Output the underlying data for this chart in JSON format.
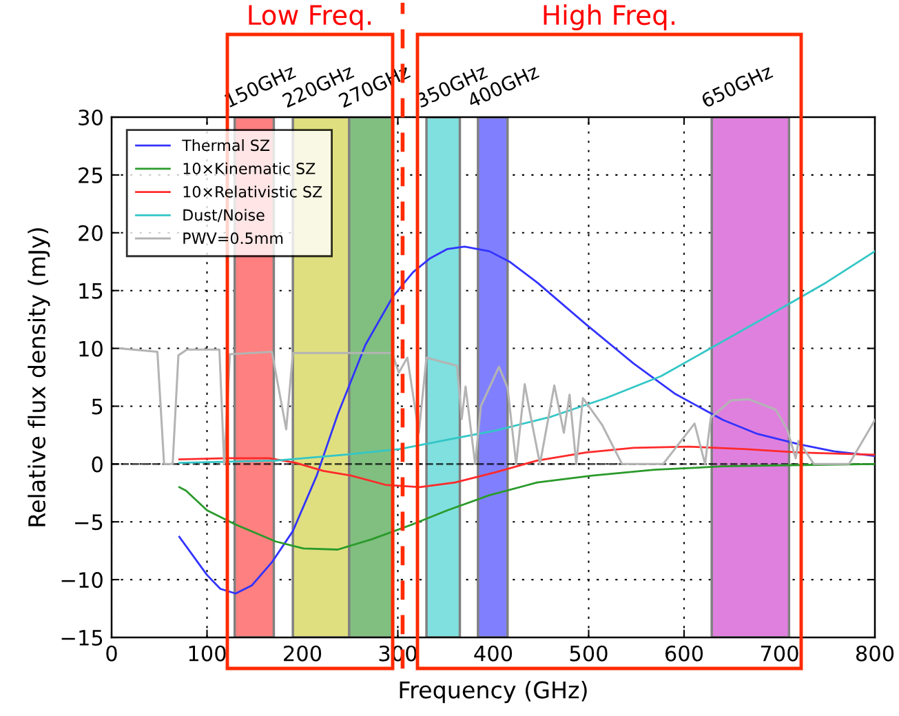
{
  "chart_data": {
    "type": "line",
    "xlabel": "Frequency (GHz)",
    "ylabel": "Relative flux density (mJy)",
    "xlim": [
      0,
      800
    ],
    "xticks": [
      0,
      100,
      200,
      300,
      400,
      500,
      600,
      700,
      800
    ],
    "ylim": [
      -15,
      30
    ],
    "yticks": [
      -15,
      -10,
      -5,
      0,
      5,
      10,
      15,
      20,
      25,
      30
    ],
    "grid": true,
    "legend": "top left",
    "annotations": [
      "Low Freq.",
      "High Freq."
    ],
    "series": [
      {
        "name": "Thermal SZ",
        "color": "#3333ff",
        "x": [
          71,
          100,
          114,
          130,
          147,
          168,
          190,
          215,
          237,
          266,
          295,
          316,
          334,
          352,
          370,
          396,
          417,
          446,
          497,
          547,
          590,
          641,
          677,
          721,
          757,
          800
        ],
        "values": [
          -6.3,
          -9.6,
          -10.8,
          -11.2,
          -10.5,
          -8.5,
          -5.8,
          -1.0,
          4.3,
          10.3,
          14.5,
          16.6,
          17.8,
          18.6,
          18.8,
          18.4,
          17.5,
          15.7,
          12.1,
          8.7,
          6.1,
          3.8,
          2.6,
          1.7,
          1.1,
          0.7
        ]
      },
      {
        "name": "10×Kinematic SZ",
        "color": "#2a9a2a",
        "x": [
          71,
          78,
          100,
          129,
          172,
          201,
          237,
          273,
          316,
          352,
          396,
          446,
          504,
          569,
          641,
          713,
          800
        ],
        "values": [
          -2.0,
          -2.3,
          -4.0,
          -5.2,
          -6.7,
          -7.3,
          -7.4,
          -6.5,
          -5.2,
          -4.0,
          -2.7,
          -1.6,
          -1.0,
          -0.5,
          -0.2,
          -0.1,
          0.0
        ]
      },
      {
        "name": "10×Relativistic SZ",
        "color": "#ff2a2a",
        "x": [
          71,
          121,
          165,
          193,
          222,
          251,
          287,
          323,
          360,
          403,
          446,
          497,
          547,
          605,
          663,
          721,
          800
        ],
        "values": [
          0.4,
          0.5,
          0.5,
          0.1,
          -0.6,
          -1.0,
          -1.8,
          -2.0,
          -1.6,
          -0.7,
          0.3,
          1.0,
          1.4,
          1.5,
          1.3,
          1.0,
          0.8
        ]
      },
      {
        "name": "Dust/Noise",
        "color": "#33c6c6",
        "x": [
          71,
          172,
          244,
          302,
          352,
          403,
          461,
          518,
          576,
          634,
          692,
          749,
          800
        ],
        "values": [
          0.1,
          0.3,
          0.8,
          1.3,
          2.1,
          2.9,
          4.1,
          5.7,
          7.6,
          10.3,
          13.0,
          15.7,
          18.4
        ]
      },
      {
        "name": "PWV=0.5mm",
        "color": "#b4b4b4",
        "x": [
          9,
          48,
          55,
          64,
          70,
          79,
          113,
          118,
          124,
          168,
          183,
          190,
          294,
          301,
          310,
          322,
          330,
          362,
          367,
          371,
          381,
          387,
          406,
          415,
          424,
          433,
          439,
          449,
          464,
          474,
          480,
          487,
          494,
          514,
          535,
          578,
          611,
          622,
          628,
          649,
          668,
          696,
          708,
          717,
          720,
          736,
          773,
          800
        ],
        "values": [
          10.0,
          9.7,
          0,
          0,
          9.4,
          9.9,
          9.9,
          0,
          9.5,
          9.7,
          3.0,
          9.6,
          9.6,
          7.9,
          9.2,
          2.7,
          9.2,
          8.5,
          3.9,
          6.7,
          0,
          5.0,
          8.4,
          6.6,
          0,
          6.9,
          4.2,
          0,
          6.8,
          2.7,
          6.0,
          0,
          5.7,
          3.4,
          0,
          0,
          3.5,
          0,
          4.0,
          5.5,
          5.6,
          4.7,
          3.0,
          0.5,
          2.0,
          0,
          0,
          3.8
        ]
      }
    ],
    "ref_lines": [
      {
        "axis": "y",
        "value": 0,
        "color": "#000000",
        "line_style": "dashed"
      },
      {
        "axis": "x",
        "value": 305,
        "color": "#ff2a00",
        "line_style": "dashed"
      }
    ],
    "bands": [
      {
        "axis": "x",
        "from": 129,
        "to": 170,
        "label": "150GHz",
        "color": "#ff8080"
      },
      {
        "axis": "x",
        "from": 190,
        "to": 249,
        "label": "220GHz",
        "color": "#dfdf80"
      },
      {
        "axis": "x",
        "from": 249,
        "to": 295,
        "label": "270GHz",
        "color": "#80bf80"
      },
      {
        "axis": "x",
        "from": 330,
        "to": 365,
        "label": "350GHz",
        "color": "#80dfdf"
      },
      {
        "axis": "x",
        "from": 384,
        "to": 415,
        "label": "400GHz",
        "color": "#8080ff"
      },
      {
        "axis": "x",
        "from": 629,
        "to": 710,
        "label": "650GHz",
        "color": "#df80df"
      }
    ]
  }
}
